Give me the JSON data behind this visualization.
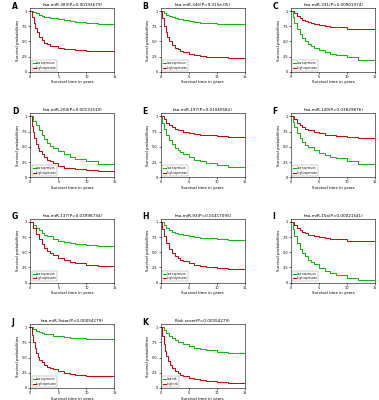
{
  "panels": [
    {
      "label": "A",
      "title": "hsa-miR-383(P=0.00193679)",
      "green_t": [
        0,
        0.5,
        1,
        1.5,
        2,
        2.5,
        3,
        3.5,
        4,
        5,
        6,
        7,
        8,
        10,
        12,
        15
      ],
      "green_s": [
        1.0,
        0.98,
        0.96,
        0.94,
        0.92,
        0.91,
        0.9,
        0.89,
        0.88,
        0.87,
        0.85,
        0.83,
        0.82,
        0.8,
        0.78,
        0.76
      ],
      "red_t": [
        0,
        0.3,
        0.6,
        0.9,
        1.2,
        1.5,
        2,
        2.5,
        3,
        3.5,
        4,
        5,
        6,
        7,
        8,
        10,
        12,
        15
      ],
      "red_s": [
        1.0,
        0.9,
        0.8,
        0.72,
        0.65,
        0.58,
        0.52,
        0.48,
        0.45,
        0.43,
        0.42,
        0.4,
        0.38,
        0.37,
        0.36,
        0.35,
        0.34,
        0.33
      ]
    },
    {
      "label": "B",
      "title": "hsa-miR-346(P=9.315e-05)",
      "green_t": [
        0,
        0.5,
        1,
        1.5,
        2,
        2.5,
        3,
        4,
        5,
        6,
        7,
        8,
        10,
        12,
        15
      ],
      "green_s": [
        1.0,
        0.97,
        0.94,
        0.92,
        0.9,
        0.88,
        0.87,
        0.85,
        0.83,
        0.82,
        0.81,
        0.8,
        0.79,
        0.78,
        0.77
      ],
      "red_t": [
        0,
        0.3,
        0.6,
        0.9,
        1.2,
        1.5,
        2,
        2.5,
        3,
        3.5,
        4,
        5,
        6,
        7,
        8,
        10,
        12,
        15
      ],
      "red_s": [
        1.0,
        0.88,
        0.76,
        0.66,
        0.57,
        0.5,
        0.44,
        0.4,
        0.37,
        0.35,
        0.33,
        0.3,
        0.28,
        0.26,
        0.25,
        0.24,
        0.22,
        0.2
      ]
    },
    {
      "label": "C",
      "title": "hsa-miR-331(P=0.00901974)",
      "green_t": [
        0,
        0.3,
        0.6,
        1,
        1.5,
        2,
        2.5,
        3,
        3.5,
        4,
        5,
        6,
        7,
        8,
        10,
        12,
        15
      ],
      "green_s": [
        1.0,
        0.9,
        0.8,
        0.7,
        0.62,
        0.55,
        0.5,
        0.46,
        0.43,
        0.4,
        0.36,
        0.33,
        0.3,
        0.28,
        0.24,
        0.2,
        0.17
      ],
      "red_t": [
        0,
        0.5,
        1,
        1.5,
        2,
        2.5,
        3,
        3.5,
        4,
        5,
        6,
        7,
        8,
        10,
        12,
        15
      ],
      "red_s": [
        1.0,
        0.96,
        0.92,
        0.89,
        0.86,
        0.84,
        0.82,
        0.8,
        0.79,
        0.77,
        0.75,
        0.74,
        0.73,
        0.71,
        0.7,
        0.69
      ]
    },
    {
      "label": "D",
      "title": "hsa-miR-204(P=0.00131519)",
      "green_t": [
        0,
        0.5,
        1,
        1.5,
        2,
        2.5,
        3,
        3.5,
        4,
        5,
        6,
        7,
        8,
        10,
        12,
        15
      ],
      "green_s": [
        1.0,
        0.93,
        0.86,
        0.78,
        0.7,
        0.63,
        0.57,
        0.52,
        0.48,
        0.43,
        0.38,
        0.34,
        0.3,
        0.26,
        0.22,
        0.18
      ],
      "red_t": [
        0,
        0.3,
        0.5,
        0.7,
        1,
        1.3,
        1.6,
        2,
        2.5,
        3,
        3.5,
        4,
        5,
        6,
        8,
        10,
        12,
        15
      ],
      "red_s": [
        1.0,
        0.85,
        0.74,
        0.64,
        0.55,
        0.48,
        0.43,
        0.38,
        0.33,
        0.29,
        0.26,
        0.23,
        0.19,
        0.16,
        0.13,
        0.12,
        0.11,
        0.1
      ]
    },
    {
      "label": "E",
      "title": "hsa-miR-197(P=0.01040582)",
      "green_t": [
        0,
        0.3,
        0.6,
        1,
        1.5,
        2,
        2.5,
        3,
        3.5,
        4,
        5,
        6,
        7,
        8,
        10,
        12,
        15
      ],
      "green_s": [
        1.0,
        0.9,
        0.8,
        0.7,
        0.61,
        0.54,
        0.48,
        0.44,
        0.41,
        0.38,
        0.33,
        0.29,
        0.26,
        0.24,
        0.2,
        0.17,
        0.14
      ],
      "red_t": [
        0,
        0.5,
        1,
        1.5,
        2,
        2.5,
        3,
        4,
        5,
        6,
        7,
        8,
        10,
        12,
        15
      ],
      "red_s": [
        1.0,
        0.95,
        0.9,
        0.86,
        0.83,
        0.8,
        0.78,
        0.75,
        0.73,
        0.71,
        0.7,
        0.69,
        0.67,
        0.66,
        0.65
      ]
    },
    {
      "label": "F",
      "title": "hsa-miR-149(P=0.03829876)",
      "green_t": [
        0,
        0.3,
        0.6,
        1,
        1.5,
        2,
        2.5,
        3,
        4,
        5,
        6,
        7,
        8,
        10,
        12,
        15
      ],
      "green_s": [
        1.0,
        0.91,
        0.82,
        0.73,
        0.65,
        0.58,
        0.53,
        0.49,
        0.44,
        0.4,
        0.37,
        0.34,
        0.31,
        0.26,
        0.22,
        0.18
      ],
      "red_t": [
        0,
        0.5,
        1,
        1.5,
        2,
        2.5,
        3,
        4,
        5,
        6,
        7,
        8,
        10,
        12,
        15
      ],
      "red_s": [
        1.0,
        0.95,
        0.9,
        0.86,
        0.82,
        0.79,
        0.77,
        0.74,
        0.72,
        0.7,
        0.69,
        0.68,
        0.66,
        0.65,
        0.64
      ]
    },
    {
      "label": "G",
      "title": "hsa-miR-137(P=0.03998734)",
      "green_t": [
        0,
        0.5,
        1,
        1.5,
        2,
        2.5,
        3,
        4,
        5,
        6,
        7,
        8,
        10,
        12,
        15
      ],
      "green_s": [
        1.0,
        0.95,
        0.9,
        0.86,
        0.82,
        0.79,
        0.76,
        0.72,
        0.69,
        0.67,
        0.65,
        0.64,
        0.62,
        0.61,
        0.6
      ],
      "red_t": [
        0,
        0.5,
        1,
        1.5,
        2,
        2.5,
        3,
        3.5,
        4,
        5,
        6,
        7,
        8,
        10,
        12,
        15
      ],
      "red_s": [
        1.0,
        0.9,
        0.8,
        0.71,
        0.63,
        0.57,
        0.52,
        0.48,
        0.45,
        0.4,
        0.37,
        0.34,
        0.32,
        0.29,
        0.27,
        0.26
      ]
    },
    {
      "label": "H",
      "title": "hsa-miR-93(P=0.01417095)",
      "green_t": [
        0,
        0.5,
        1,
        1.5,
        2,
        2.5,
        3,
        4,
        5,
        6,
        7,
        8,
        10,
        12,
        15
      ],
      "green_s": [
        1.0,
        0.95,
        0.9,
        0.87,
        0.84,
        0.82,
        0.8,
        0.78,
        0.76,
        0.75,
        0.74,
        0.73,
        0.71,
        0.7,
        0.69
      ],
      "red_t": [
        0,
        0.3,
        0.6,
        1,
        1.5,
        2,
        2.5,
        3,
        3.5,
        4,
        5,
        6,
        7,
        8,
        10,
        12,
        15
      ],
      "red_s": [
        1.0,
        0.88,
        0.76,
        0.65,
        0.56,
        0.49,
        0.44,
        0.4,
        0.37,
        0.35,
        0.32,
        0.29,
        0.27,
        0.25,
        0.24,
        0.23,
        0.22
      ]
    },
    {
      "label": "I",
      "title": "hsa-miR-15a(P=0.00021541)",
      "green_t": [
        0,
        0.3,
        0.6,
        1,
        1.5,
        2,
        2.5,
        3,
        3.5,
        4,
        5,
        6,
        7,
        8,
        10,
        12,
        15
      ],
      "green_s": [
        1.0,
        0.88,
        0.76,
        0.65,
        0.56,
        0.49,
        0.43,
        0.38,
        0.34,
        0.3,
        0.24,
        0.19,
        0.15,
        0.12,
        0.08,
        0.05,
        0.03
      ],
      "red_t": [
        0,
        0.5,
        1,
        1.5,
        2,
        2.5,
        3,
        4,
        5,
        6,
        7,
        8,
        10,
        12,
        15
      ],
      "red_s": [
        1.0,
        0.95,
        0.9,
        0.86,
        0.83,
        0.81,
        0.79,
        0.77,
        0.75,
        0.73,
        0.72,
        0.71,
        0.69,
        0.68,
        0.67
      ]
    },
    {
      "label": "J",
      "title": "hsa-miR-9star(P=0.00054279)",
      "green_t": [
        0,
        0.5,
        1,
        1.5,
        2,
        2.5,
        3,
        4,
        5,
        6,
        7,
        8,
        10,
        12,
        15
      ],
      "green_s": [
        1.0,
        0.97,
        0.94,
        0.92,
        0.9,
        0.89,
        0.88,
        0.86,
        0.85,
        0.84,
        0.83,
        0.82,
        0.81,
        0.8,
        0.79
      ],
      "red_t": [
        0,
        0.3,
        0.5,
        0.8,
        1,
        1.3,
        1.6,
        2,
        2.5,
        3,
        3.5,
        4,
        5,
        6,
        7,
        8,
        10,
        12,
        15
      ],
      "red_s": [
        1.0,
        0.87,
        0.76,
        0.65,
        0.57,
        0.51,
        0.46,
        0.42,
        0.38,
        0.35,
        0.33,
        0.31,
        0.28,
        0.25,
        0.23,
        0.22,
        0.2,
        0.19,
        0.18
      ]
    },
    {
      "label": "K",
      "title": "Risk score(P=0.00054279)",
      "green_t": [
        0,
        0.5,
        1,
        1.5,
        2,
        2.5,
        3,
        4,
        5,
        6,
        7,
        8,
        10,
        12,
        15
      ],
      "green_s": [
        1.0,
        0.95,
        0.9,
        0.86,
        0.82,
        0.79,
        0.76,
        0.72,
        0.69,
        0.66,
        0.64,
        0.62,
        0.59,
        0.57,
        0.55
      ],
      "red_t": [
        0,
        0.3,
        0.5,
        0.7,
        1,
        1.3,
        1.6,
        2,
        2.5,
        3,
        3.5,
        4,
        5,
        6,
        7,
        8,
        10,
        12,
        15
      ],
      "red_s": [
        1.0,
        0.85,
        0.72,
        0.61,
        0.52,
        0.44,
        0.38,
        0.33,
        0.28,
        0.24,
        0.21,
        0.19,
        0.16,
        0.14,
        0.13,
        0.12,
        0.1,
        0.09,
        0.08
      ]
    }
  ],
  "green_color": "#00bb00",
  "red_color": "#cc0000",
  "bg_color": "#ffffff",
  "xlabel": "Survival time in years",
  "ylabel": "Survival probabilities",
  "legend_entries": {
    "A": [
      "low expression",
      "high expression"
    ],
    "B": [
      "low expression",
      "high expression"
    ],
    "C": [
      "low expression",
      "high expression"
    ],
    "D": [
      "low expression",
      "high expression"
    ],
    "E": [
      "low expression",
      "high expression"
    ],
    "F": [
      "low expression",
      "high expression"
    ],
    "G": [
      "low expression",
      "high expression"
    ],
    "H": [
      "low expression",
      "high expression"
    ],
    "I": [
      "low expression",
      "high expression"
    ],
    "J": [
      "low expression",
      "high expression"
    ],
    "K": [
      "low risk",
      "high risk"
    ]
  }
}
